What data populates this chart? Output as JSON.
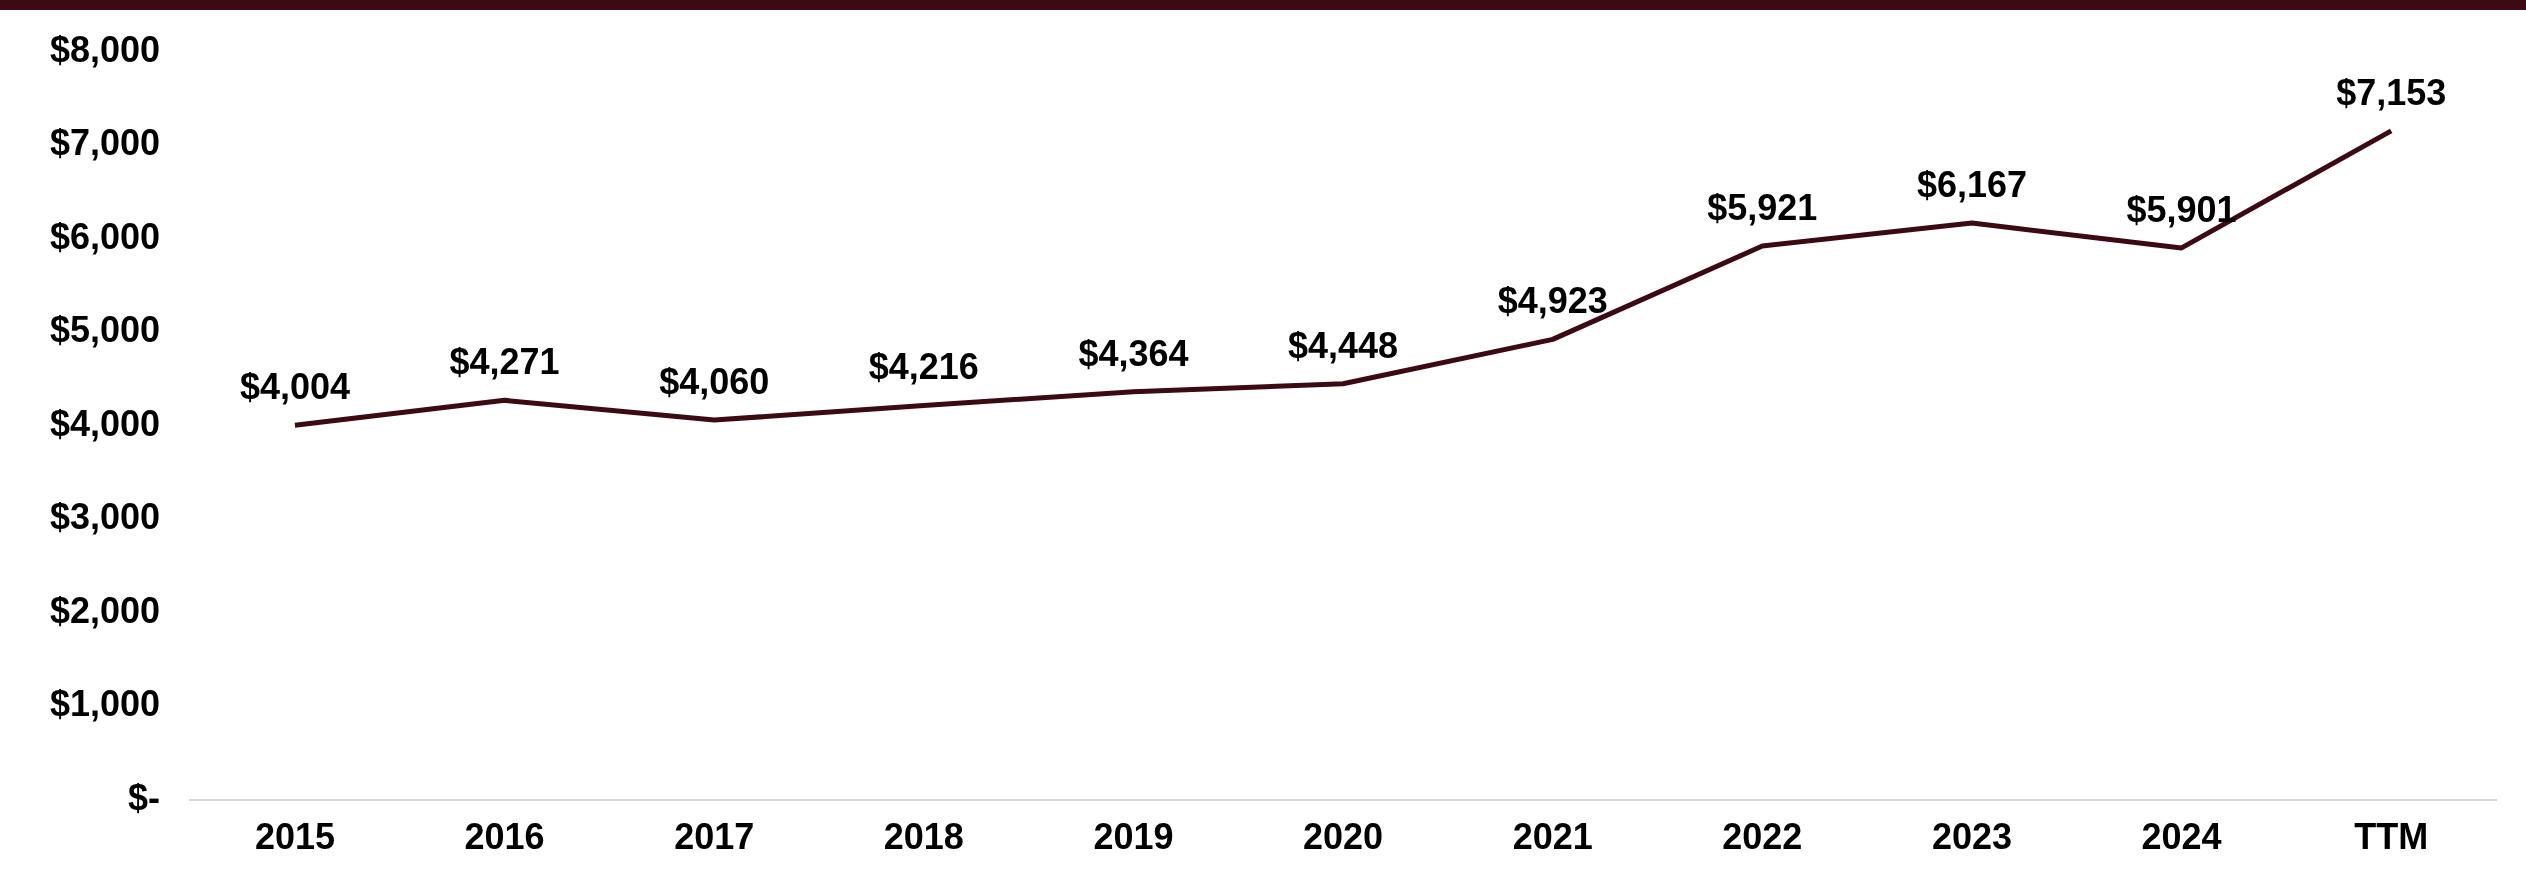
{
  "chart_data": {
    "type": "line",
    "categories": [
      "2015",
      "2016",
      "2017",
      "2018",
      "2019",
      "2020",
      "2021",
      "2022",
      "2023",
      "2024",
      "TTM"
    ],
    "series": [
      {
        "color": "#3d0a14",
        "values": [
          4004,
          4271,
          4060,
          4216,
          4364,
          4448,
          4923,
          5921,
          6167,
          5901,
          7153
        ],
        "value_labels": [
          "$4,004",
          "$4,271",
          "$4,060",
          "$4,216",
          "$4,364",
          "$4,448",
          "$4,923",
          "$5,921",
          "$6,167",
          "$5,901",
          "$7,153"
        ]
      }
    ],
    "ylim": [
      0,
      8000
    ],
    "yticks": [
      {
        "value": 0,
        "label": "$-"
      },
      {
        "value": 1000,
        "label": "$1,000"
      },
      {
        "value": 2000,
        "label": "$2,000"
      },
      {
        "value": 3000,
        "label": "$3,000"
      },
      {
        "value": 4000,
        "label": "$4,000"
      },
      {
        "value": 5000,
        "label": "$5,000"
      },
      {
        "value": 6000,
        "label": "$6,000"
      },
      {
        "value": 7000,
        "label": "$7,000"
      },
      {
        "value": 8000,
        "label": "$8,000"
      }
    ],
    "grid": false,
    "legend": false,
    "marker": "none",
    "line_style": "solid"
  }
}
